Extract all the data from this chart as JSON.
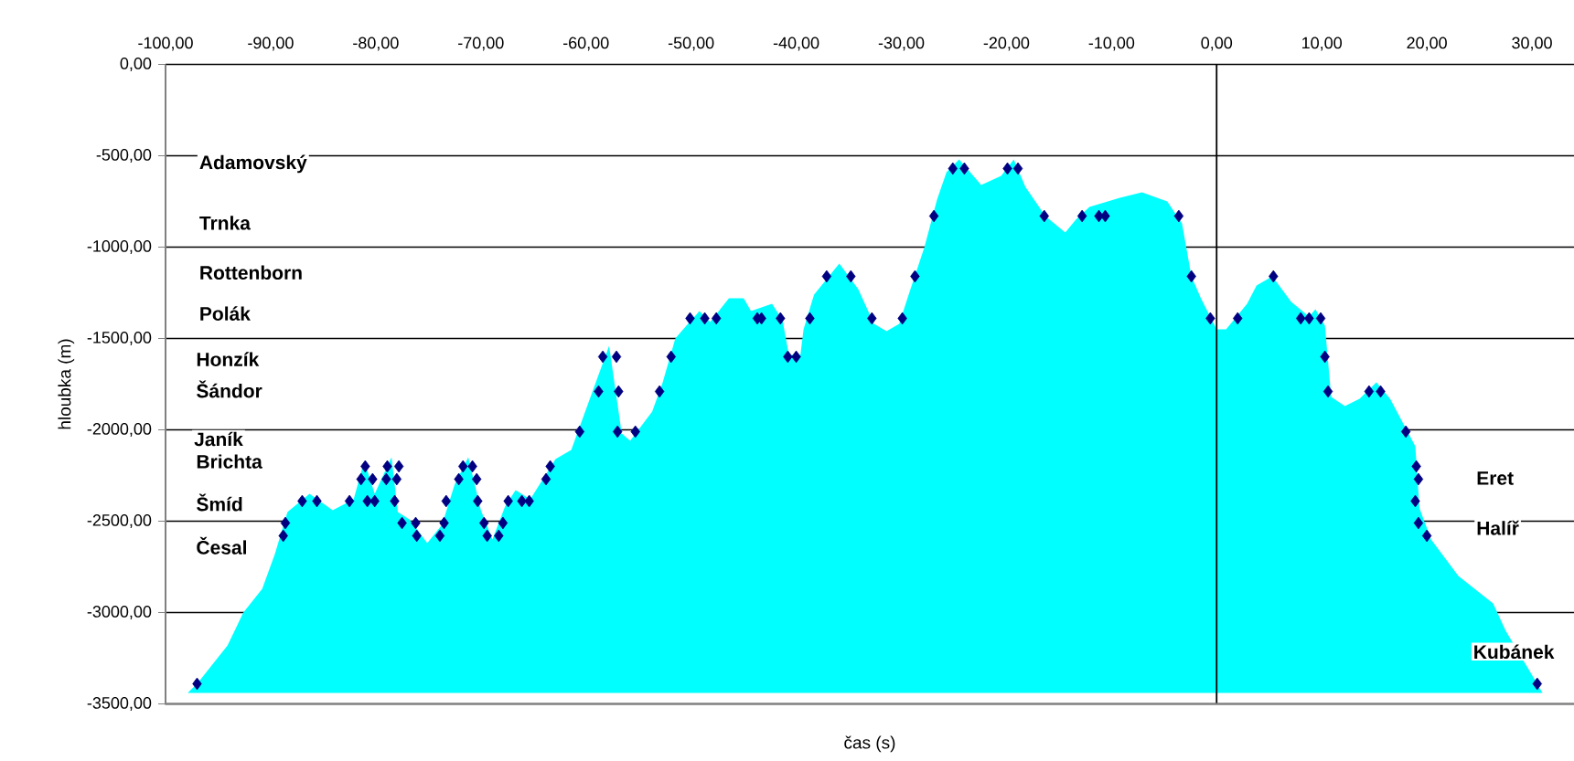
{
  "chart_data": {
    "type": "area",
    "xlabel": "čas (s)",
    "ylabel": "hloubka (m)",
    "xlim": [
      -100,
      34
    ],
    "ylim": [
      -3500,
      0
    ],
    "xticks": [
      {
        "value": -100,
        "label": "-100,00"
      },
      {
        "value": -90,
        "label": "-90,00"
      },
      {
        "value": -80,
        "label": "-80,00"
      },
      {
        "value": -70,
        "label": "-70,00"
      },
      {
        "value": -60,
        "label": "-60,00"
      },
      {
        "value": -50,
        "label": "-50,00"
      },
      {
        "value": -40,
        "label": "-40,00"
      },
      {
        "value": -30,
        "label": "-30,00"
      },
      {
        "value": -20,
        "label": "-20,00"
      },
      {
        "value": -10,
        "label": "-10,00"
      },
      {
        "value": 0,
        "label": "0,00"
      },
      {
        "value": 10,
        "label": "10,00"
      },
      {
        "value": 20,
        "label": "20,00"
      },
      {
        "value": 30,
        "label": "30,00"
      }
    ],
    "yticks": [
      {
        "value": 0,
        "label": "0,00"
      },
      {
        "value": -500,
        "label": "-500,00"
      },
      {
        "value": -1000,
        "label": "-1000,00"
      },
      {
        "value": -1500,
        "label": "-1500,00"
      },
      {
        "value": -2000,
        "label": "-2000,00"
      },
      {
        "value": -2500,
        "label": "-2500,00"
      },
      {
        "value": -3000,
        "label": "-3000,00"
      },
      {
        "value": -3500,
        "label": "-3500,00"
      }
    ],
    "grid": "y",
    "ref_lines": [
      {
        "axis": "x",
        "value": 0,
        "color": "#000000"
      }
    ],
    "series": [
      {
        "color": "#00ffff",
        "x": [
          -97.9,
          -97.0,
          -94.1,
          -92.6,
          -90.8,
          -89.6,
          -88.4,
          -86.3,
          -84.1,
          -82.1,
          -81.1,
          -80.1,
          -78.5,
          -77.9,
          -76.8,
          -75.1,
          -73.7,
          -72.5,
          -71.2,
          -70.0,
          -68.9,
          -67.7,
          -66.7,
          -65.3,
          -62.9,
          -61.4,
          -60.2,
          -57.8,
          -56.6,
          -55.8,
          -53.7,
          -52.7,
          -51.5,
          -50.3,
          -49.2,
          -48.2,
          -46.4,
          -45.0,
          -44.3,
          -42.3,
          -41.3,
          -40.7,
          -39.6,
          -39.3,
          -38.3,
          -35.9,
          -34.1,
          -32.6,
          -31.4,
          -30.2,
          -29.3,
          -27.8,
          -26.6,
          -25.7,
          -24.5,
          -22.4,
          -20.5,
          -19.3,
          -18.2,
          -16.3,
          -14.4,
          -13.4,
          -12.1,
          -9.2,
          -7.1,
          -4.7,
          -3.3,
          -2.4,
          -1.5,
          0.0,
          0.9,
          2.9,
          3.8,
          5.3,
          7.1,
          8.8,
          9.4,
          10.3,
          10.9,
          12.2,
          13.6,
          15.2,
          16.5,
          18.9,
          19.3,
          20.4,
          23.0,
          26.3,
          27.5,
          30.5,
          31.0
        ],
        "values": [
          -3440,
          -3390,
          -3180,
          -3000,
          -2870,
          -2680,
          -2450,
          -2350,
          -2440,
          -2380,
          -2170,
          -2350,
          -2150,
          -2450,
          -2490,
          -2620,
          -2520,
          -2300,
          -2150,
          -2440,
          -2600,
          -2420,
          -2330,
          -2380,
          -2160,
          -2110,
          -1920,
          -1540,
          -2020,
          -2060,
          -1900,
          -1740,
          -1500,
          -1420,
          -1350,
          -1410,
          -1280,
          -1280,
          -1350,
          -1310,
          -1400,
          -1590,
          -1590,
          -1450,
          -1260,
          -1090,
          -1230,
          -1420,
          -1460,
          -1420,
          -1260,
          -1000,
          -740,
          -590,
          -520,
          -660,
          -610,
          -520,
          -670,
          -830,
          -920,
          -850,
          -780,
          -730,
          -700,
          -750,
          -870,
          -1160,
          -1280,
          -1450,
          -1450,
          -1310,
          -1210,
          -1160,
          -1300,
          -1380,
          -1340,
          -1430,
          -1820,
          -1870,
          -1830,
          -1740,
          -1830,
          -2090,
          -2430,
          -2600,
          -2800,
          -2950,
          -3100,
          -3390,
          -3440
        ]
      },
      {
        "type": "scatter",
        "marker": "diamond",
        "color": "#000080",
        "x": [
          -97.0,
          -88.8,
          -88.6,
          -87.0,
          -85.6,
          -82.5,
          -81.4,
          -81.0,
          -80.8,
          -80.3,
          -80.1,
          -79.0,
          -78.9,
          -78.2,
          -78.0,
          -77.8,
          -77.5,
          -76.2,
          -76.1,
          -73.9,
          -73.5,
          -73.3,
          -72.1,
          -71.7,
          -70.8,
          -70.4,
          -70.3,
          -69.7,
          -69.4,
          -68.3,
          -67.9,
          -67.4,
          -66.1,
          -65.4,
          -63.8,
          -63.4,
          -60.6,
          -58.8,
          -58.4,
          -57.1,
          -57.0,
          -56.9,
          -55.3,
          -53.0,
          -51.9,
          -50.1,
          -48.7,
          -47.6,
          -43.7,
          -43.3,
          -41.5,
          -40.8,
          -40.0,
          -38.7,
          -37.1,
          -34.8,
          -32.8,
          -29.9,
          -28.7,
          -26.9,
          -25.1,
          -24.0,
          -19.9,
          -18.9,
          -16.4,
          -12.8,
          -11.2,
          -10.6,
          -3.6,
          -2.4,
          -0.6,
          2.0,
          5.4,
          8.0,
          8.8,
          9.9,
          10.3,
          10.6,
          14.5,
          15.6,
          18.0,
          19.0,
          19.2,
          18.9,
          19.2,
          20.0,
          30.5
        ],
        "values": [
          -3390,
          -2580,
          -2510,
          -2390,
          -2390,
          -2390,
          -2270,
          -2200,
          -2390,
          -2270,
          -2390,
          -2270,
          -2200,
          -2390,
          -2270,
          -2200,
          -2510,
          -2510,
          -2580,
          -2580,
          -2510,
          -2390,
          -2270,
          -2200,
          -2200,
          -2270,
          -2390,
          -2510,
          -2580,
          -2580,
          -2510,
          -2390,
          -2390,
          -2390,
          -2270,
          -2200,
          -2010,
          -1790,
          -1600,
          -1600,
          -2010,
          -1790,
          -2010,
          -1790,
          -1600,
          -1390,
          -1390,
          -1390,
          -1390,
          -1390,
          -1390,
          -1600,
          -1600,
          -1390,
          -1160,
          -1160,
          -1390,
          -1390,
          -1160,
          -830,
          -570,
          -570,
          -570,
          -570,
          -830,
          -830,
          -830,
          -830,
          -830,
          -1160,
          -1390,
          -1390,
          -1160,
          -1390,
          -1390,
          -1390,
          -1600,
          -1790,
          -1790,
          -1790,
          -2010,
          -2200,
          -2270,
          -2390,
          -2510,
          -2580,
          -3390
        ]
      }
    ],
    "annotations": [
      "Adamovský",
      "Trnka",
      "Rottenborn",
      "Polák",
      "Honzík",
      "Šándor",
      "Janík",
      "Brichta",
      "Šmíd",
      "Česal",
      "Eret",
      "Halíř",
      "Kubánek"
    ]
  }
}
